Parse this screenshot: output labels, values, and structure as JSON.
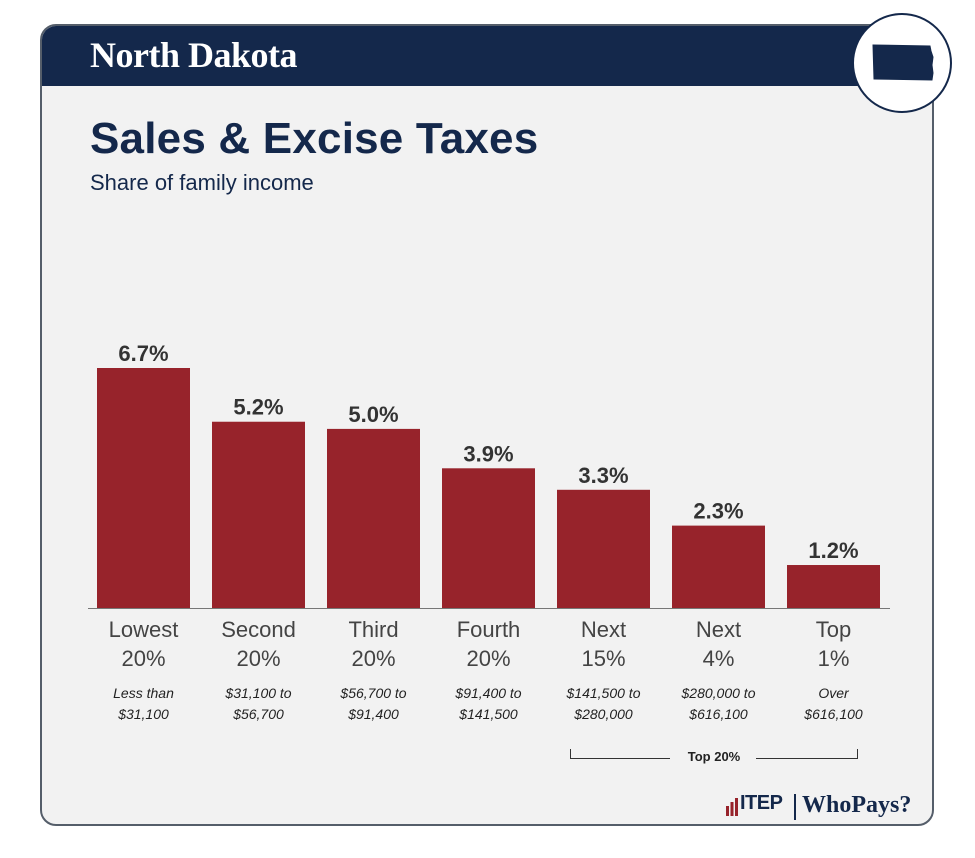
{
  "header": {
    "state_name": "North Dakota",
    "state_icon": "north-dakota-state-shape-icon"
  },
  "title": "Sales & Excise Taxes",
  "subtitle": "Share of family income",
  "colors": {
    "bar": "#97232b",
    "header": "#14284b",
    "card_bg": "#f2f2f2",
    "value_text": "#333333"
  },
  "chart_data": {
    "type": "bar",
    "title": "Sales & Excise Taxes",
    "subtitle": "Share of family income",
    "categories": [
      "Lowest 20%",
      "Second 20%",
      "Third 20%",
      "Fourth 20%",
      "Next 15%",
      "Next 4%",
      "Top 1%"
    ],
    "category_lines": [
      [
        "Lowest",
        "20%"
      ],
      [
        "Second",
        "20%"
      ],
      [
        "Third",
        "20%"
      ],
      [
        "Fourth",
        "20%"
      ],
      [
        "Next",
        "15%"
      ],
      [
        "Next",
        "4%"
      ],
      [
        "Top",
        "1%"
      ]
    ],
    "income_ranges": [
      [
        "Less than",
        "$31,100"
      ],
      [
        "$31,100 to",
        "$56,700"
      ],
      [
        "$56,700 to",
        "$91,400"
      ],
      [
        "$91,400 to",
        "$141,500"
      ],
      [
        "$141,500 to",
        "$280,000"
      ],
      [
        "$280,000 to",
        "$616,100"
      ],
      [
        "Over",
        "$616,100"
      ]
    ],
    "values": [
      6.7,
      5.2,
      5.0,
      3.9,
      3.3,
      2.3,
      1.2
    ],
    "value_labels": [
      "6.7%",
      "5.2%",
      "5.0%",
      "3.9%",
      "3.3%",
      "2.3%",
      "1.2%"
    ],
    "ylim": [
      0,
      6.7
    ],
    "xlabel": "",
    "ylabel": "",
    "grid": false,
    "bracket_label": "Top 20%"
  },
  "footer": {
    "itep_logo": "ITEP",
    "whopays_logo": "WhoPays?"
  }
}
